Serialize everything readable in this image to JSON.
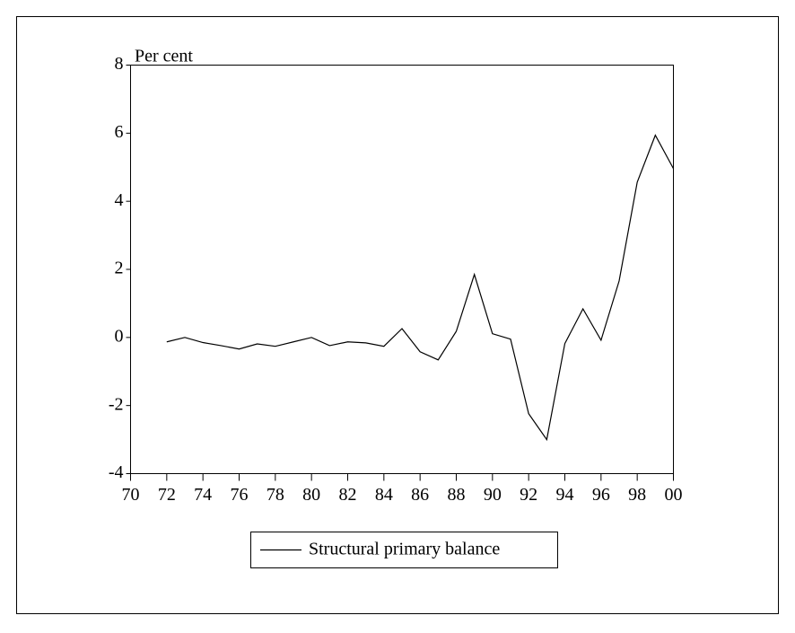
{
  "chart_data": {
    "type": "line",
    "y_axis_label": "Per cent",
    "x": [
      1972,
      1973,
      1974,
      1975,
      1976,
      1977,
      1978,
      1979,
      1980,
      1981,
      1982,
      1983,
      1984,
      1985,
      1986,
      1987,
      1988,
      1989,
      1990,
      1991,
      1992,
      1993,
      1994,
      1995,
      1996,
      1997,
      1998,
      1999,
      2000
    ],
    "series": [
      {
        "name": "Structural primary balance",
        "color": "#000000",
        "values": [
          -0.13,
          0.0,
          -0.15,
          -0.24,
          -0.34,
          -0.19,
          -0.26,
          -0.13,
          0.0,
          -0.24,
          -0.13,
          -0.16,
          -0.26,
          0.26,
          -0.42,
          -0.66,
          0.18,
          1.85,
          0.11,
          -0.05,
          -2.24,
          -3.0,
          -0.18,
          0.84,
          -0.08,
          1.66,
          4.56,
          5.94,
          4.96
        ]
      }
    ],
    "xlim": [
      1970,
      2000
    ],
    "xticks": [
      {
        "value": 1970,
        "label": "70"
      },
      {
        "value": 1972,
        "label": "72"
      },
      {
        "value": 1974,
        "label": "74"
      },
      {
        "value": 1976,
        "label": "76"
      },
      {
        "value": 1978,
        "label": "78"
      },
      {
        "value": 1980,
        "label": "80"
      },
      {
        "value": 1982,
        "label": "82"
      },
      {
        "value": 1984,
        "label": "84"
      },
      {
        "value": 1986,
        "label": "86"
      },
      {
        "value": 1988,
        "label": "88"
      },
      {
        "value": 1990,
        "label": "90"
      },
      {
        "value": 1992,
        "label": "92"
      },
      {
        "value": 1994,
        "label": "94"
      },
      {
        "value": 1996,
        "label": "96"
      },
      {
        "value": 1998,
        "label": "98"
      },
      {
        "value": 2000,
        "label": "00"
      }
    ],
    "ylim": [
      -4,
      8
    ],
    "yticks": [
      -4,
      -2,
      0,
      2,
      4,
      6,
      8
    ],
    "grid": false
  }
}
